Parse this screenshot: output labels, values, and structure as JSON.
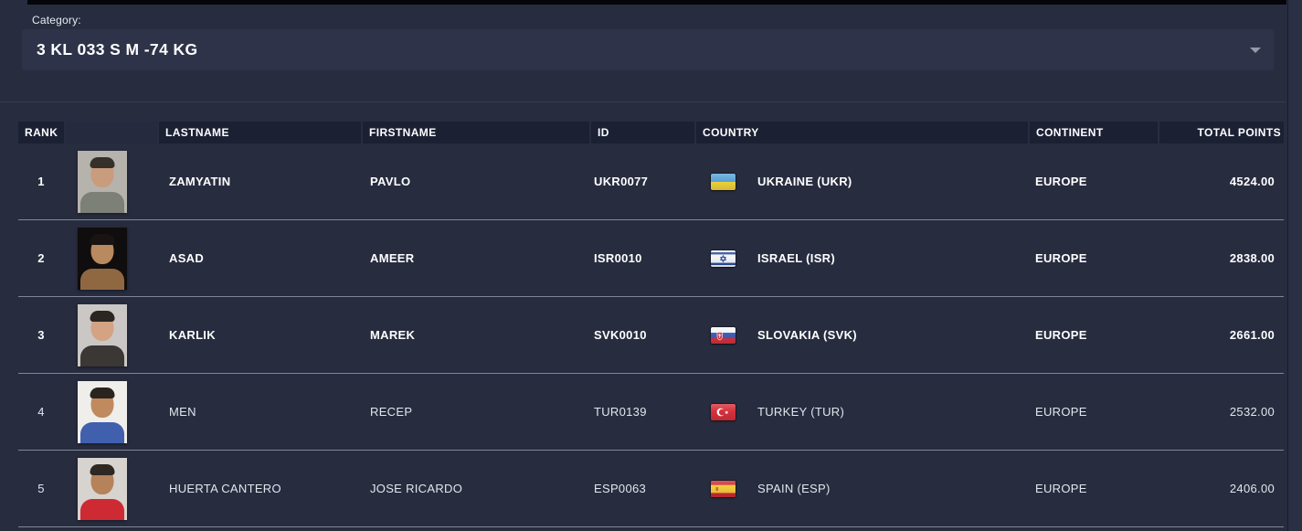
{
  "category": {
    "label": "Category:",
    "value": "3 KL 033 S M -74 KG"
  },
  "colors": {
    "page_background": "#272c3f",
    "header_cell_background": "#1b2033",
    "select_background": "#2e3349",
    "row_separator": "#cbd1de",
    "text": "#ffffff"
  },
  "table": {
    "columns": [
      "RANK",
      "",
      "LASTNAME",
      "FIRSTNAME",
      "ID",
      "COUNTRY",
      "CONTINENT",
      "TOTAL POINTS"
    ],
    "rows": [
      {
        "rank": "1",
        "lastname": "ZAMYATIN",
        "firstname": "PAVLO",
        "id": "UKR0077",
        "flag": "ukraine",
        "country": "UKRAINE (UKR)",
        "continent": "EUROPE",
        "points": "4524.00",
        "photo": {
          "bg": "#b6b2ac",
          "skin": "#c99c7d",
          "hair": "#35302a",
          "shirt": "#7c8076"
        }
      },
      {
        "rank": "2",
        "lastname": "ASAD",
        "firstname": "AMEER",
        "id": "ISR0010",
        "flag": "israel",
        "country": "ISRAEL (ISR)",
        "continent": "EUROPE",
        "points": "2838.00",
        "photo": {
          "bg": "#100d0e",
          "skin": "#b9895f",
          "hair": "#191311",
          "shirt": "#8f6842"
        }
      },
      {
        "rank": "3",
        "lastname": "KARLIK",
        "firstname": "MAREK",
        "id": "SVK0010",
        "flag": "slovakia",
        "country": "SLOVAKIA (SVK)",
        "continent": "EUROPE",
        "points": "2661.00",
        "photo": {
          "bg": "#cbc7c5",
          "skin": "#d3a384",
          "hair": "#2c2621",
          "shirt": "#3a3734"
        }
      },
      {
        "rank": "4",
        "lastname": "MEN",
        "firstname": "RECEP",
        "id": "TUR0139",
        "flag": "turkey",
        "country": "TURKEY (TUR)",
        "continent": "EUROPE",
        "points": "2532.00",
        "photo": {
          "bg": "#efeeea",
          "skin": "#c08a5e",
          "hair": "#2a241f",
          "shirt": "#4060ae"
        }
      },
      {
        "rank": "5",
        "lastname": "HUERTA CANTERO",
        "firstname": "JOSE RICARDO",
        "id": "ESP0063",
        "flag": "spain",
        "country": "SPAIN (ESP)",
        "continent": "EUROPE",
        "points": "2406.00",
        "photo": {
          "bg": "#d7d3ce",
          "skin": "#b5825a",
          "hair": "#2e2722",
          "shirt": "#cd2a34"
        }
      }
    ]
  }
}
